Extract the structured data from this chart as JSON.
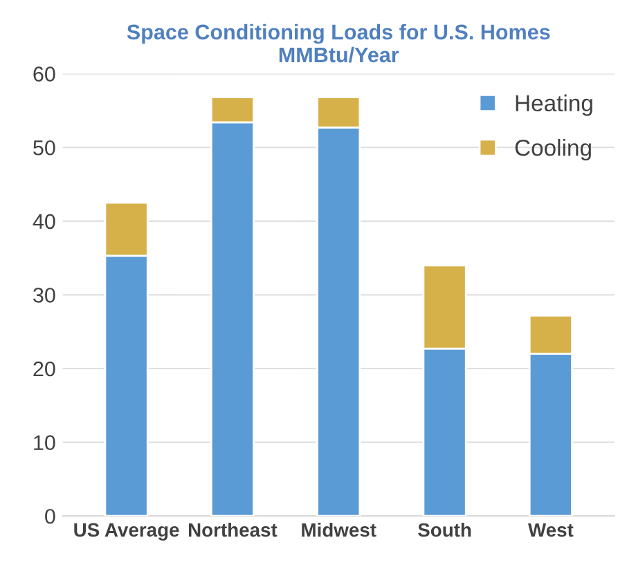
{
  "chart_data": {
    "type": "bar",
    "title": "Space Conditioning Loads for U.S. Homes\nMMBtu/Year",
    "categories": [
      "US Average",
      "Northeast",
      "Midwest",
      "South",
      "West"
    ],
    "series": [
      {
        "name": "Heating",
        "color": "#5b9bd5",
        "values": [
          35.3,
          53.4,
          52.7,
          22.7,
          22.0
        ]
      },
      {
        "name": "Cooling",
        "color": "#d6b14a",
        "values": [
          7.2,
          3.4,
          4.1,
          11.3,
          5.2
        ]
      }
    ],
    "stacked": true,
    "ylim": [
      0,
      60
    ],
    "yticks": [
      0,
      10,
      20,
      30,
      40,
      50,
      60
    ],
    "grid": "y",
    "legend": "top right"
  }
}
